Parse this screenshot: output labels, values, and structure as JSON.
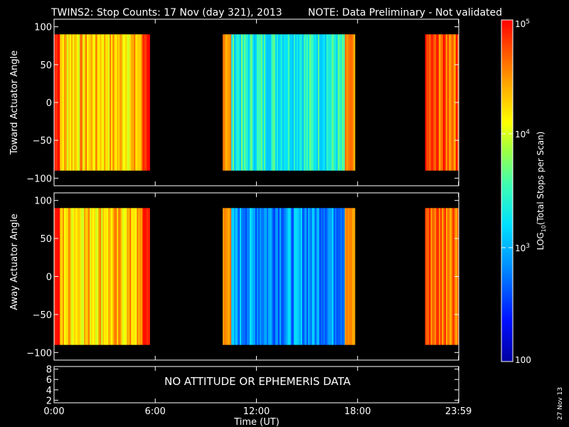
{
  "title": {
    "main": "TWINS2: Stop Counts: 17 Nov (day 321), 2013",
    "note": "NOTE: Data Preliminary - Not validated",
    "note_color": "#ff2020"
  },
  "footer": {
    "xlabel": "Time (UT)",
    "stamp": "27 Nov 13"
  },
  "colorbar": {
    "label_prefix": "LOG",
    "label_sub": "10",
    "label_suffix": "(Total Stops per Scan)",
    "ticks": [
      {
        "value": 100000,
        "label": "10",
        "exp": "5"
      },
      {
        "value": 10000,
        "label": "10",
        "exp": "4"
      },
      {
        "value": 1000,
        "label": "10",
        "exp": "3"
      },
      {
        "value": 100,
        "label": "100",
        "exp": ""
      }
    ],
    "range": [
      100,
      100000
    ],
    "scale": "log",
    "colormap": "rainbow (blue-cyan-green-yellow-orange-red)"
  },
  "chart_data": [
    {
      "type": "heatmap",
      "panel": "top",
      "ylabel": "Toward Actuator Angle",
      "ylim": [
        -110,
        110
      ],
      "yticks": [
        100,
        50,
        0,
        -50,
        -100
      ],
      "y_data_range": [
        -90,
        90
      ],
      "xlim_hours": [
        0,
        24
      ],
      "segments": [
        {
          "start": "00:00",
          "end": "05:40",
          "dominant_log10": 4.3,
          "edge_log10": 4.9
        },
        {
          "start": "10:00",
          "end": "17:50",
          "dominant_log10": 3.4,
          "edge_log10": 4.5
        },
        {
          "start": "22:00",
          "end": "23:59",
          "dominant_log10": 4.7
        }
      ]
    },
    {
      "type": "heatmap",
      "panel": "middle",
      "ylabel": "Away Actuator Angle",
      "ylim": [
        -110,
        110
      ],
      "yticks": [
        100,
        50,
        0,
        -50,
        -100
      ],
      "y_data_range": [
        -90,
        90
      ],
      "xlim_hours": [
        0,
        24
      ],
      "segments": [
        {
          "start": "00:00",
          "end": "05:40",
          "dominant_log10": 4.3,
          "edge_log10": 4.9
        },
        {
          "start": "10:00",
          "end": "17:50",
          "dominant_log10": 2.9,
          "edge_log10": 4.5
        },
        {
          "start": "22:00",
          "end": "23:59",
          "dominant_log10": 4.7
        }
      ]
    },
    {
      "type": "line",
      "panel": "bottom",
      "ylim": [
        1.5,
        8.5
      ],
      "yticks": [
        8,
        6,
        4,
        2
      ],
      "message": "NO ATTITUDE OR EPHEMERIS DATA",
      "x_ticklabels": [
        "0:00",
        "6:00",
        "12:00",
        "18:00",
        "23:59"
      ],
      "x_tickvalues_hours": [
        0,
        6,
        12,
        18,
        23.983
      ]
    }
  ]
}
